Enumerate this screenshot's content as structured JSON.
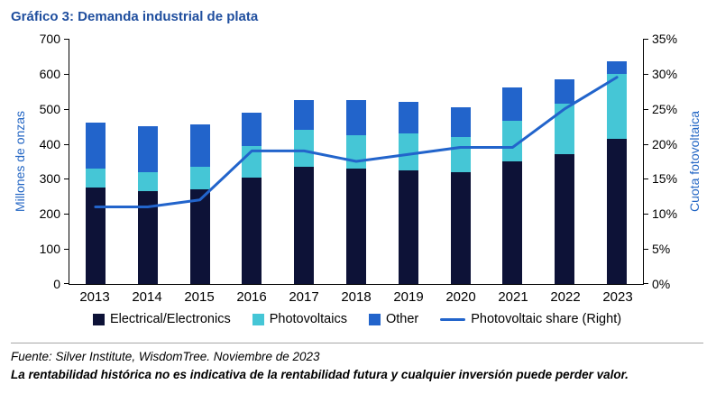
{
  "title": "Gráfico 3: Demanda industrial de plata",
  "left_axis": {
    "label": "Millones de onzas",
    "max": 700,
    "ticks": [
      "700",
      "600",
      "500",
      "400",
      "300",
      "200",
      "100",
      "0"
    ]
  },
  "right_axis": {
    "label": "Cuota fotovoltaica",
    "max": 35,
    "ticks": [
      "35%",
      "30%",
      "25%",
      "20%",
      "15%",
      "10%",
      "5%",
      "0%"
    ]
  },
  "chart_data": {
    "type": "bar",
    "stacked": true,
    "grid": false,
    "legend_position": "bottom",
    "title": "Gráfico 3: Demanda industrial de plata",
    "xlabel": "",
    "ylabel_left": "Millones de onzas",
    "ylabel_right": "Cuota fotovoltaica",
    "ylim_left": [
      0,
      700
    ],
    "ylim_right": [
      0,
      35
    ],
    "categories": [
      "2013",
      "2014",
      "2015",
      "2016",
      "2017",
      "2018",
      "2019",
      "2020",
      "2021",
      "2022",
      "2023"
    ],
    "series": [
      {
        "name": "Electrical/Electronics",
        "color": "#0d1237",
        "axis": "left",
        "values": [
          275,
          265,
          270,
          305,
          335,
          330,
          325,
          320,
          350,
          370,
          415
        ]
      },
      {
        "name": "Photovoltaics",
        "color": "#45c6d6",
        "axis": "left",
        "values": [
          55,
          55,
          65,
          90,
          105,
          95,
          105,
          100,
          115,
          145,
          185
        ]
      },
      {
        "name": "Other",
        "color": "#2264cb",
        "axis": "left",
        "values": [
          130,
          130,
          120,
          95,
          85,
          100,
          90,
          85,
          95,
          70,
          35
        ]
      }
    ],
    "line_series": {
      "name": "Photovoltaic share (Right)",
      "color": "#2264cb",
      "axis": "right",
      "values": [
        11,
        11,
        12,
        19,
        19,
        17.5,
        18.5,
        19.5,
        19.5,
        25,
        29.5
      ]
    }
  },
  "legend": {
    "items": [
      {
        "label": "Electrical/Electronics",
        "swatch": "square",
        "color": "#0d1237"
      },
      {
        "label": "Photovoltaics",
        "swatch": "square",
        "color": "#45c6d6"
      },
      {
        "label": "Other",
        "swatch": "square",
        "color": "#2264cb"
      },
      {
        "label": "Photovoltaic share (Right)",
        "swatch": "line",
        "color": "#2264cb"
      }
    ]
  },
  "footer": {
    "source": "Fuente: Silver Institute, WisdomTree. Noviembre de 2023",
    "disclaimer": "La rentabilidad histórica no es indicativa de la rentabilidad futura y cualquier inversión puede perder valor."
  }
}
